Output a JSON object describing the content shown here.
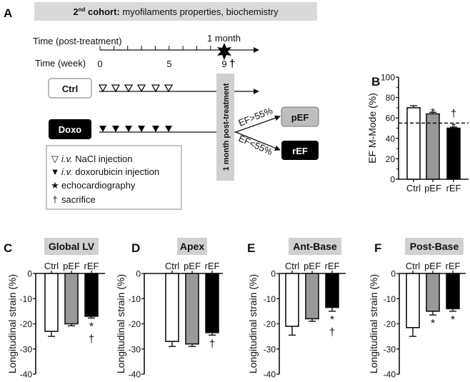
{
  "panel_a": {
    "letter": "A",
    "banner": {
      "cohort_num": "2",
      "cohort_sup": "nd",
      "cohort_word": " cohort:",
      "subtitle": "myofilaments properties, biochemistry"
    },
    "time_post_label": "Time (post-treatment)",
    "one_month_label": "1 month",
    "time_week_label": "Time (week)",
    "week_ticks": [
      "0",
      "5",
      "9"
    ],
    "dagger": "†",
    "groups": {
      "ctrl": "Ctrl",
      "doxo": "Doxo"
    },
    "post_treatment_bar": "1 month post-treatment",
    "branch_up": "EF>55%",
    "branch_down": "EF<55%",
    "outcomes": {
      "pef": "pEF",
      "ref": "rEF"
    },
    "legend": [
      {
        "symbol": "▽",
        "italic": "i.v.",
        "text": " NaCl injection"
      },
      {
        "symbol": "▼",
        "italic": "i.v.",
        "text": " doxorubicin injection"
      },
      {
        "symbol": "★",
        "italic": "",
        "text": "echocardiography"
      },
      {
        "symbol": "†",
        "italic": "",
        "text": "sacrifice"
      }
    ]
  },
  "chart_data": [
    {
      "panel": "B",
      "type": "bar",
      "title": "",
      "categories": [
        "Ctrl",
        "pEF",
        "rEF"
      ],
      "values": [
        70,
        64,
        50
      ],
      "errors": [
        2,
        1.5,
        1
      ],
      "colors": [
        "#ffffff",
        "#999999",
        "#000000"
      ],
      "annotations": [
        "",
        "*",
        "*\n†"
      ],
      "ylabel": "EF M-Mode (%)",
      "ylim": [
        0,
        100
      ],
      "yticks": [
        "0",
        "20",
        "40",
        "60",
        "80",
        "100"
      ],
      "reference_line": 55
    },
    {
      "panel": "C",
      "type": "bar",
      "title": "Global LV",
      "categories": [
        "Ctrl",
        "pEF",
        "rEF"
      ],
      "values": [
        -23,
        -20,
        -17
      ],
      "errors": [
        2,
        0.8,
        0.7
      ],
      "colors": [
        "#ffffff",
        "#999999",
        "#000000"
      ],
      "annotations": [
        "",
        "",
        "*\n†"
      ],
      "ylabel": "Longitudinal strain (%)",
      "ylim": [
        -40,
        0
      ],
      "yticks": [
        "0",
        "-10",
        "-20",
        "-30",
        "-40"
      ]
    },
    {
      "panel": "D",
      "type": "bar",
      "title": "Apex",
      "categories": [
        "Ctrl",
        "pEF",
        "rEF"
      ],
      "values": [
        -27,
        -28,
        -23.5
      ],
      "errors": [
        2,
        1,
        1
      ],
      "colors": [
        "#ffffff",
        "#999999",
        "#000000"
      ],
      "annotations": [
        "",
        "",
        "†"
      ],
      "ylabel": "Longitudinal strain (%)",
      "ylim": [
        -40,
        0
      ],
      "yticks": [
        "0",
        "-10",
        "-20",
        "-30",
        "-40"
      ]
    },
    {
      "panel": "E",
      "type": "bar",
      "title": "Ant-Base",
      "categories": [
        "Ctrl",
        "pEF",
        "rEF"
      ],
      "values": [
        -21,
        -18,
        -13.5
      ],
      "errors": [
        3.5,
        1,
        1.5
      ],
      "colors": [
        "#ffffff",
        "#999999",
        "#000000"
      ],
      "annotations": [
        "",
        "",
        "*\n†"
      ],
      "ylabel": "Longitudinal strain (%)",
      "ylim": [
        -40,
        0
      ],
      "yticks": [
        "0",
        "-10",
        "-20",
        "-30",
        "-40"
      ]
    },
    {
      "panel": "F",
      "type": "bar",
      "title": "Post-Base",
      "categories": [
        "Ctrl",
        "pEF",
        "rEF"
      ],
      "values": [
        -21.5,
        -15,
        -14
      ],
      "errors": [
        3.5,
        1.5,
        1
      ],
      "colors": [
        "#ffffff",
        "#999999",
        "#000000"
      ],
      "annotations": [
        "",
        "*",
        "*"
      ],
      "ylabel": "Longitudinal strain (%)",
      "ylim": [
        -40,
        0
      ],
      "yticks": [
        "0",
        "-10",
        "-20",
        "-30",
        "-40"
      ]
    }
  ]
}
